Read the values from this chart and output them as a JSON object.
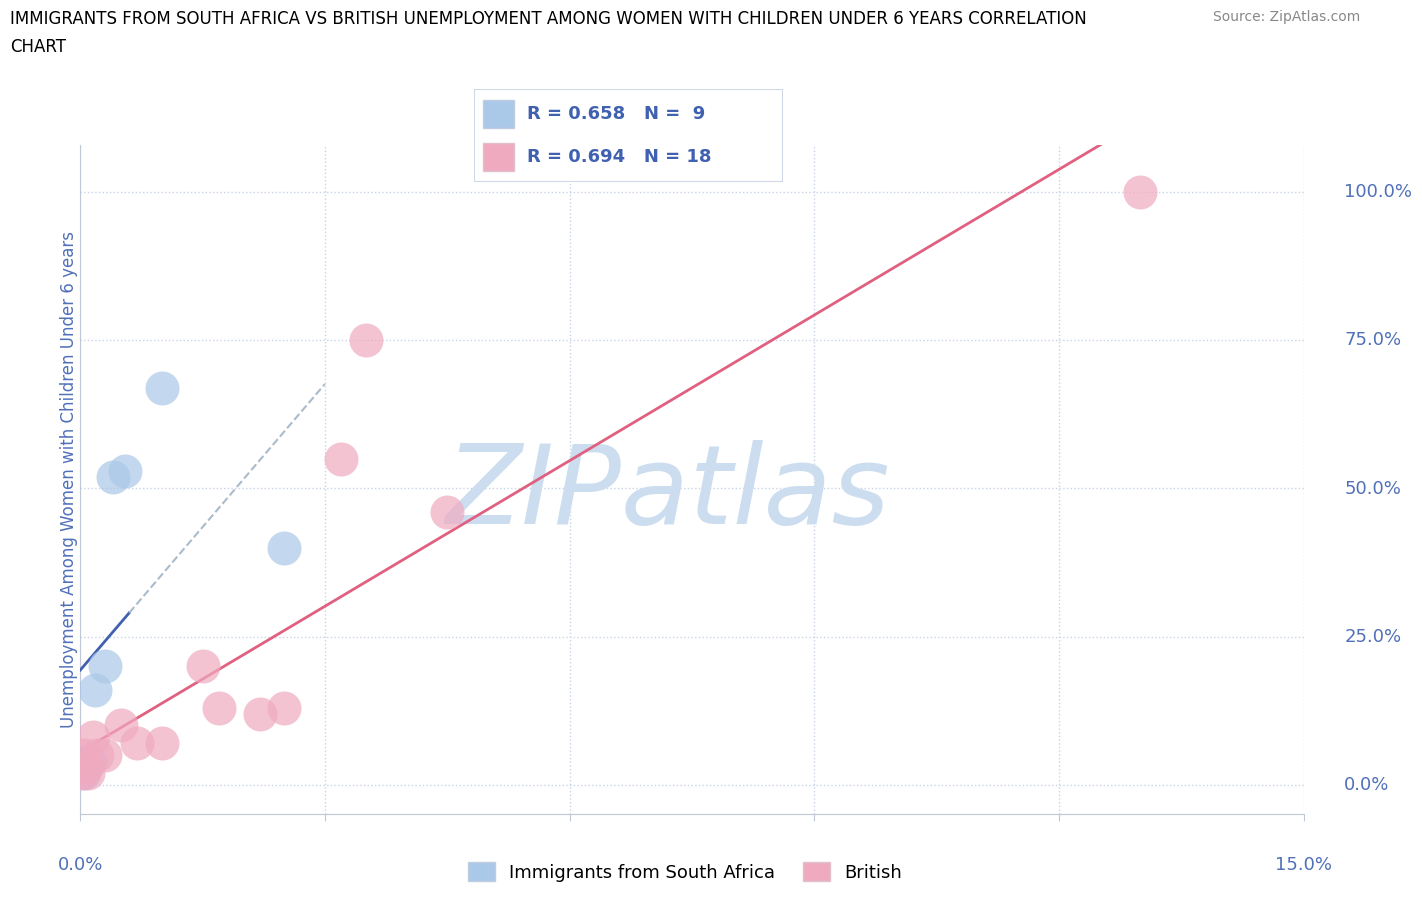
{
  "title_line1": "IMMIGRANTS FROM SOUTH AFRICA VS BRITISH UNEMPLOYMENT AMONG WOMEN WITH CHILDREN UNDER 6 YEARS CORRELATION",
  "title_line2": "CHART",
  "source": "Source: ZipAtlas.com",
  "ylabel_label": "Unemployment Among Women with Children Under 6 years",
  "watermark": "ZIPatlas",
  "legend_blue_r": "R = 0.658",
  "legend_blue_n": "N =  9",
  "legend_pink_r": "R = 0.694",
  "legend_pink_n": "N = 18",
  "blue_color": "#aac8e8",
  "pink_color": "#f0aac0",
  "blue_line_color": "#4060b0",
  "pink_line_color": "#e06080",
  "blue_scatter": [
    [
      0.05,
      2.0
    ],
    [
      0.08,
      3.5
    ],
    [
      0.12,
      4.0
    ],
    [
      0.18,
      16.0
    ],
    [
      0.3,
      20.0
    ],
    [
      0.4,
      52.0
    ],
    [
      0.55,
      53.0
    ],
    [
      1.0,
      67.0
    ],
    [
      2.5,
      40.0
    ]
  ],
  "pink_scatter": [
    [
      0.02,
      2.0
    ],
    [
      0.05,
      5.0
    ],
    [
      0.07,
      3.0
    ],
    [
      0.1,
      2.0
    ],
    [
      0.15,
      8.0
    ],
    [
      0.2,
      5.0
    ],
    [
      0.3,
      5.0
    ],
    [
      0.5,
      10.0
    ],
    [
      0.7,
      7.0
    ],
    [
      1.0,
      7.0
    ],
    [
      1.5,
      20.0
    ],
    [
      1.7,
      13.0
    ],
    [
      2.2,
      12.0
    ],
    [
      2.5,
      13.0
    ],
    [
      3.2,
      55.0
    ],
    [
      3.5,
      75.0
    ],
    [
      4.5,
      46.0
    ],
    [
      13.0,
      100.0
    ]
  ],
  "xlim": [
    0,
    15
  ],
  "ylim": [
    -5,
    108
  ],
  "ytick_vals": [
    0,
    25,
    50,
    75,
    100
  ],
  "ytick_labels": [
    "0.0%",
    "25.0%",
    "50.0%",
    "75.0%",
    "100.0%"
  ],
  "xtick_minor": [
    0,
    3,
    6,
    9,
    12,
    15
  ],
  "grid_color": "#c8d4e8",
  "background_color": "#ffffff",
  "title_fontsize": 12,
  "axis_tick_color": "#5070b8",
  "axis_label_color": "#5070b8",
  "watermark_color": "#ccddf0",
  "watermark_fontsize": 80,
  "legend_box_color": "#ffffff",
  "legend_border_color": "#d0d8e8"
}
